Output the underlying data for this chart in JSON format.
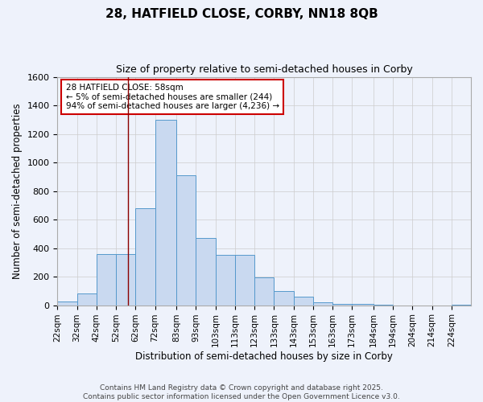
{
  "title_line1": "28, HATFIELD CLOSE, CORBY, NN18 8QB",
  "title_line2": "Size of property relative to semi-detached houses in Corby",
  "xlabel": "Distribution of semi-detached houses by size in Corby",
  "ylabel": "Number of semi-detached properties",
  "bin_labels": [
    "22sqm",
    "32sqm",
    "42sqm",
    "52sqm",
    "62sqm",
    "72sqm",
    "83sqm",
    "93sqm",
    "103sqm",
    "113sqm",
    "123sqm",
    "133sqm",
    "143sqm",
    "153sqm",
    "163sqm",
    "173sqm",
    "184sqm",
    "194sqm",
    "204sqm",
    "214sqm",
    "224sqm"
  ],
  "bin_edges": [
    22,
    32,
    42,
    52,
    62,
    72,
    83,
    93,
    103,
    113,
    123,
    133,
    143,
    153,
    163,
    173,
    184,
    194,
    204,
    214,
    224,
    234
  ],
  "bar_values": [
    25,
    80,
    360,
    360,
    680,
    1300,
    910,
    470,
    350,
    350,
    195,
    100,
    60,
    20,
    10,
    10,
    5,
    0,
    0,
    0,
    5
  ],
  "bar_color": "#c9d9f0",
  "bar_edge_color": "#5599cc",
  "grid_color": "#cccccc",
  "background_color": "#eef2fb",
  "vline_x": 58,
  "vline_color": "#8b0000",
  "annotation_title": "28 HATFIELD CLOSE: 58sqm",
  "annotation_line1": "← 5% of semi-detached houses are smaller (244)",
  "annotation_line2": "94% of semi-detached houses are larger (4,236) →",
  "annotation_box_color": "#ffffff",
  "annotation_box_edge": "#cc0000",
  "ylim": [
    0,
    1600
  ],
  "yticks": [
    0,
    200,
    400,
    600,
    800,
    1000,
    1200,
    1400,
    1600
  ],
  "footer_line1": "Contains HM Land Registry data © Crown copyright and database right 2025.",
  "footer_line2": "Contains public sector information licensed under the Open Government Licence v3.0."
}
